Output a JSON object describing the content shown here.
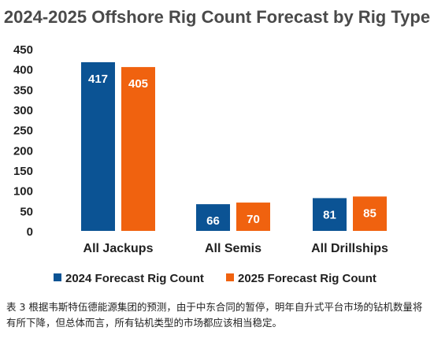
{
  "chart_data": {
    "type": "bar",
    "title": "2024-2025 Offshore Rig Count Forecast by Rig Type",
    "xlabel": "",
    "ylabel": "",
    "categories": [
      "All Jackups",
      "All Semis",
      "All Drillships"
    ],
    "series": [
      {
        "name": "2024 Forecast Rig Count",
        "values": [
          417,
          66,
          81
        ],
        "color": "#0b5394"
      },
      {
        "name": "2025 Forecast Rig Count",
        "values": [
          405,
          70,
          85
        ],
        "color": "#f0620f"
      }
    ],
    "ylim": [
      0,
      450
    ],
    "yticks": [
      0,
      50,
      100,
      150,
      200,
      250,
      300,
      350,
      400,
      450
    ],
    "grid": false,
    "legend": "bottom",
    "data_labels": true
  },
  "caption": "表 3 根据韦斯特伍德能源集团的预测，由于中东合同的暂停，明年自升式平台市场的钻机数量将有所下降，但总体而言，所有钻机类型的市场都应该相当稳定。"
}
